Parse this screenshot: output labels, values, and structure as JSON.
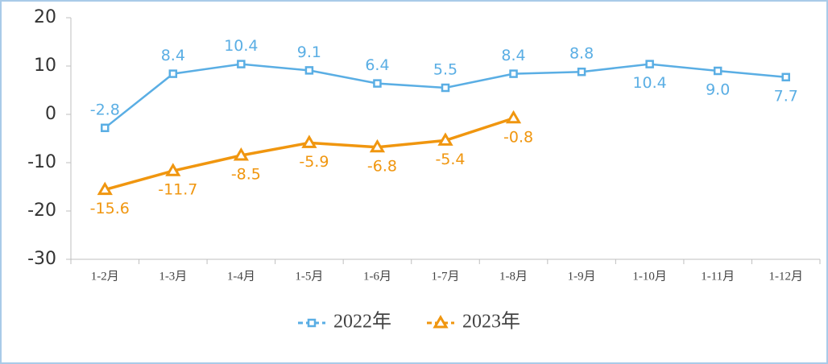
{
  "chart_data": {
    "type": "line",
    "categories": [
      "1-2月",
      "1-3月",
      "1-4月",
      "1-5月",
      "1-6月",
      "1-7月",
      "1-8月",
      "1-9月",
      "1-10月",
      "1-11月",
      "1-12月"
    ],
    "series": [
      {
        "name": "2022年",
        "color": "#5aaee4",
        "marker": "square",
        "values": [
          -2.8,
          8.4,
          10.4,
          9.1,
          6.4,
          5.5,
          8.4,
          8.8,
          10.4,
          9.0,
          7.7
        ],
        "value_labels": [
          "-2.8",
          "8.4",
          "10.4",
          "9.1",
          "6.4",
          "5.5",
          "8.4",
          "8.8",
          "10.4",
          "9.0",
          "7.7"
        ]
      },
      {
        "name": "2023年",
        "color": "#f0960f",
        "marker": "triangle",
        "values": [
          -15.6,
          -11.7,
          -8.5,
          -5.9,
          -6.8,
          -5.4,
          -0.8,
          null,
          null,
          null,
          null
        ]
      }
    ],
    "ylim": [
      -30,
      20
    ],
    "yticks": [
      -30,
      -20,
      -10,
      0,
      10,
      20
    ],
    "grid": false,
    "legend": "bottom"
  }
}
